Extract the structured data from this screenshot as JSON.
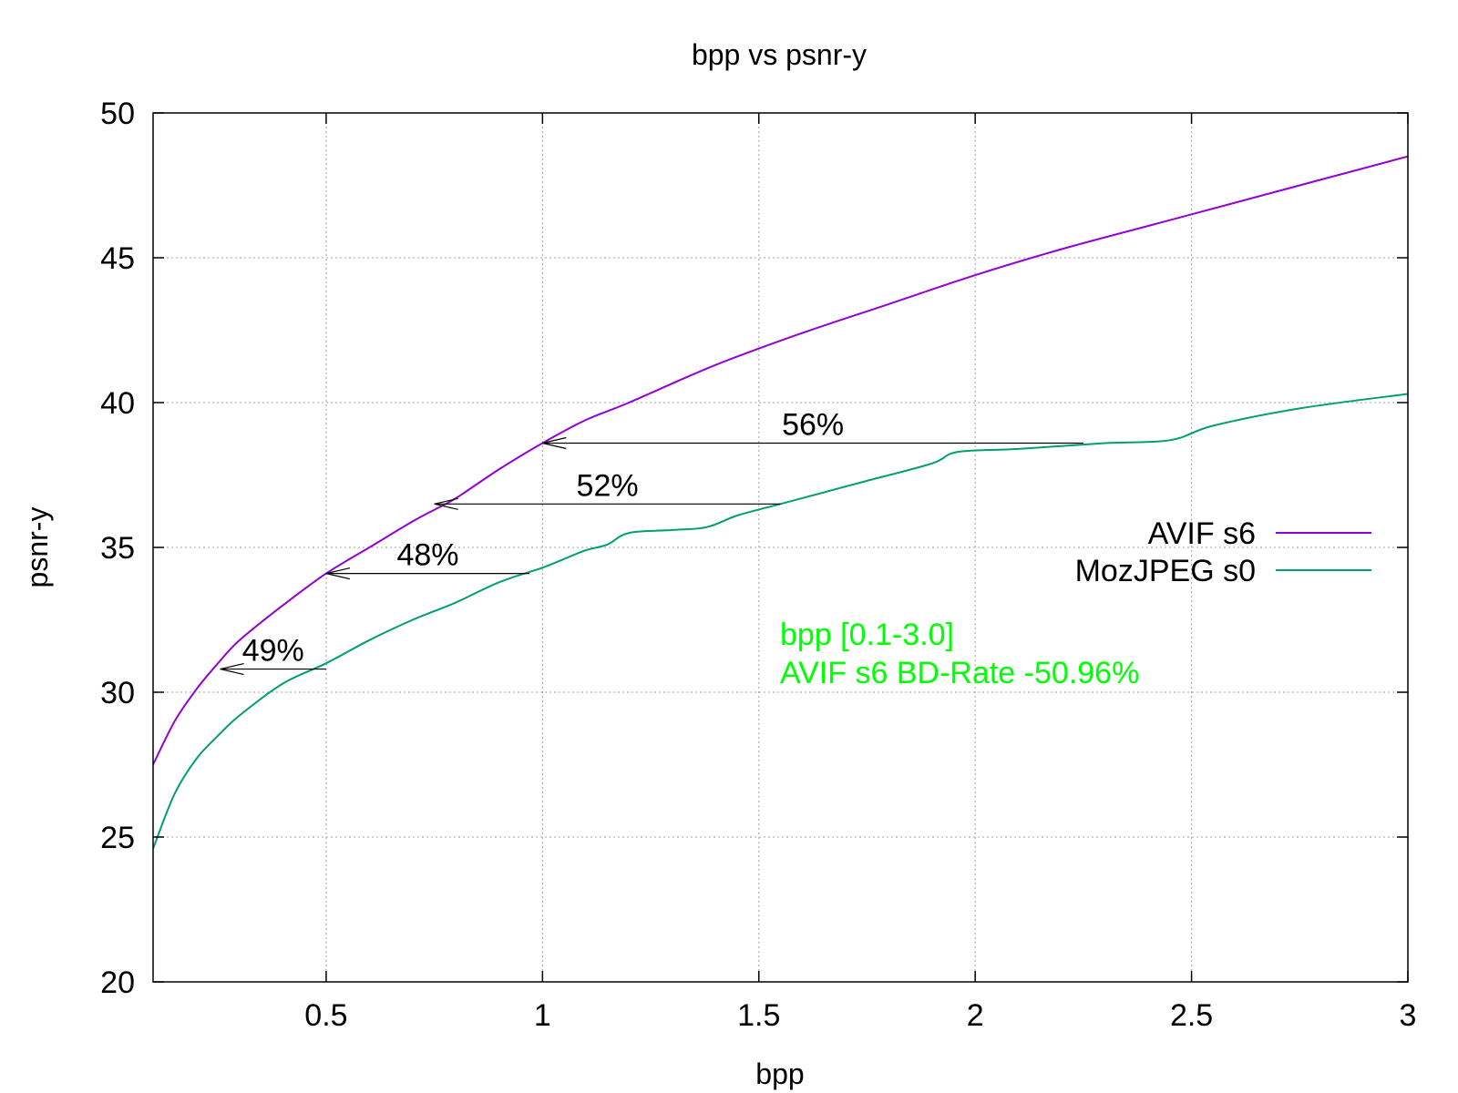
{
  "chart_data": {
    "type": "line",
    "title": "bpp vs psnr-y",
    "xlabel": "bpp",
    "ylabel": "psnr-y",
    "xlim": [
      0.1,
      3.0
    ],
    "ylim": [
      20,
      50
    ],
    "xticks": [
      0.5,
      1,
      1.5,
      2,
      2.5,
      3
    ],
    "xtick_labels": [
      "0.5",
      "1",
      "1.5",
      "2",
      "2.5",
      "3"
    ],
    "yticks": [
      20,
      25,
      30,
      35,
      40,
      45,
      50
    ],
    "ytick_labels": [
      "20",
      "25",
      "30",
      "35",
      "40",
      "45",
      "50"
    ],
    "grid": true,
    "legend_position": "right",
    "series": [
      {
        "name": "AVIF s6",
        "color": "#9400d3",
        "x": [
          0.1,
          0.15,
          0.2,
          0.25,
          0.3,
          0.4,
          0.5,
          0.6,
          0.7,
          0.75,
          0.8,
          0.9,
          1.0,
          1.1,
          1.2,
          1.4,
          1.6,
          1.8,
          2.0,
          2.2,
          2.4,
          2.6,
          2.8,
          3.0
        ],
        "y": [
          27.5,
          29.0,
          30.1,
          31.0,
          31.8,
          33.0,
          34.1,
          35.0,
          35.9,
          36.3,
          36.7,
          37.7,
          38.6,
          39.4,
          40.0,
          41.3,
          42.4,
          43.4,
          44.4,
          45.3,
          46.1,
          46.9,
          47.7,
          48.5
        ]
      },
      {
        "name": "MozJPEG s0",
        "color": "#009e73",
        "x": [
          0.1,
          0.15,
          0.2,
          0.25,
          0.3,
          0.4,
          0.5,
          0.6,
          0.7,
          0.8,
          0.9,
          1.0,
          1.05,
          1.1,
          1.15,
          1.2,
          1.3,
          1.38,
          1.45,
          1.55,
          1.65,
          1.75,
          1.9,
          1.96,
          2.1,
          2.3,
          2.45,
          2.55,
          2.75,
          3.0
        ],
        "y": [
          24.6,
          26.5,
          27.7,
          28.5,
          29.2,
          30.3,
          31.0,
          31.8,
          32.5,
          33.1,
          33.8,
          34.3,
          34.6,
          34.9,
          35.1,
          35.5,
          35.6,
          35.7,
          36.1,
          36.5,
          36.9,
          37.3,
          37.9,
          38.3,
          38.4,
          38.6,
          38.7,
          39.2,
          39.8,
          40.3
        ]
      }
    ],
    "annotations": [
      {
        "label": "49%",
        "from_x": 0.5,
        "to_x": 0.255,
        "y": 30.8
      },
      {
        "label": "48%",
        "from_x": 0.97,
        "to_x": 0.5,
        "y": 34.1
      },
      {
        "label": "52%",
        "from_x": 1.55,
        "to_x": 0.75,
        "y": 36.5
      },
      {
        "label": "56%",
        "from_x": 2.25,
        "to_x": 1.0,
        "y": 38.6
      }
    ],
    "bd_rate_text": {
      "line1": "bpp [0.1-3.0]",
      "line2": "AVIF s6 BD-Rate -50.96%",
      "color": "#00ff00"
    }
  }
}
